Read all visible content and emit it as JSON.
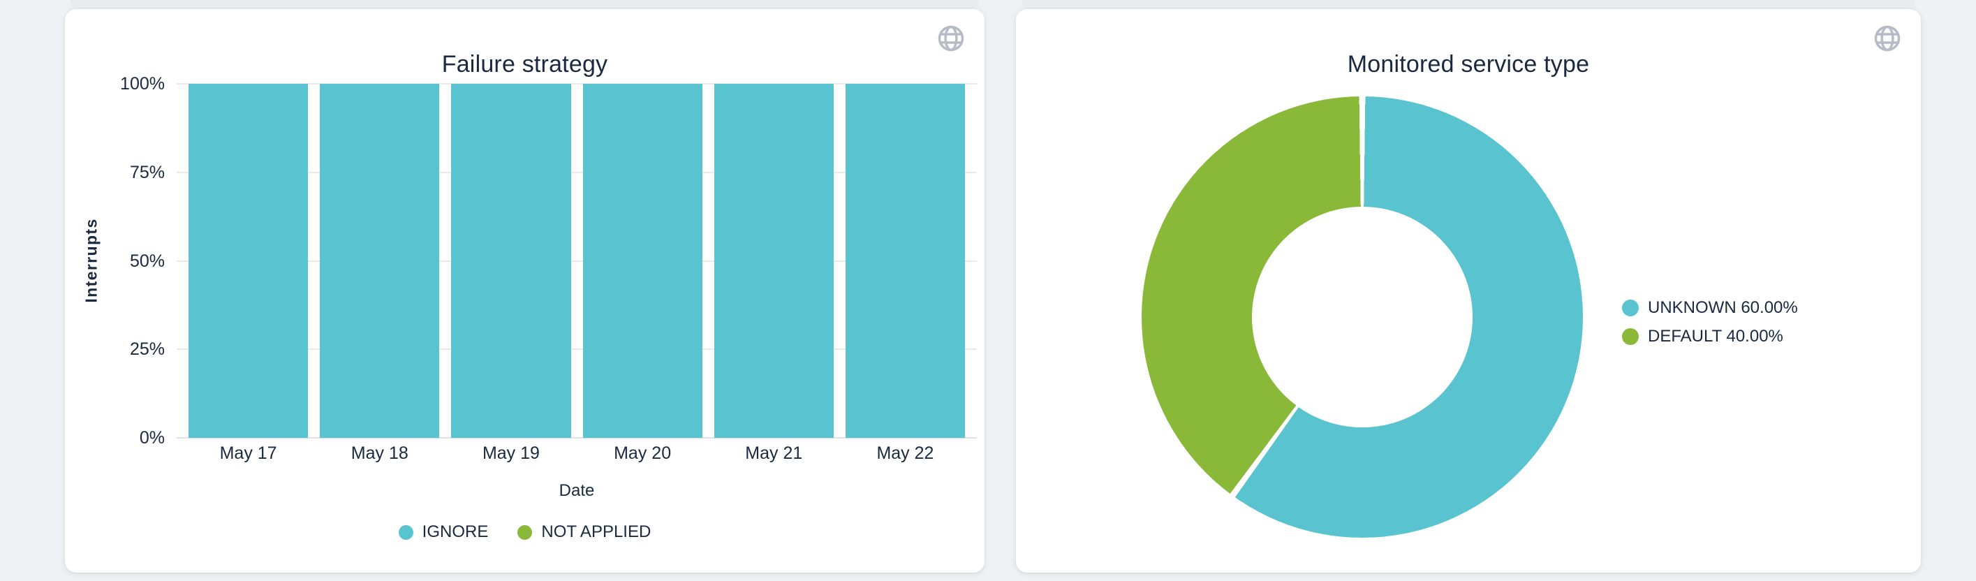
{
  "page": {
    "background_color": "#EFF1F4",
    "card_color": "#FFFFFF",
    "text_color": "#1B2940",
    "grid_color": "#E8EAED",
    "icon_color": "#B6BCC6"
  },
  "widgets": {
    "failure_strategy": {
      "corner_icon": "globe"
    },
    "monitored_service_type": {
      "corner_icon": "globe"
    }
  },
  "chart_data": [
    {
      "type": "bar",
      "title": "Failure strategy",
      "xlabel": "Date",
      "ylabel": "Interrupts",
      "categories": [
        "May 17",
        "May 18",
        "May 19",
        "May 20",
        "May 21",
        "May 22"
      ],
      "series": [
        {
          "name": "IGNORE",
          "color": "#59C4CF",
          "values": [
            100,
            100,
            100,
            100,
            100,
            100
          ]
        },
        {
          "name": "NOT APPLIED",
          "color": "#8AB838",
          "values": [
            0,
            0,
            0,
            0,
            0,
            0
          ]
        }
      ],
      "stacked": true,
      "value_unit": "%",
      "ylim": [
        0,
        100
      ],
      "yticks": [
        "0%",
        "25%",
        "50%",
        "75%",
        "100%"
      ],
      "grid": true,
      "legend_position": "bottom"
    },
    {
      "type": "pie",
      "title": "Monitored service type",
      "donut": true,
      "start_angle_deg": 0,
      "direction": "clockwise",
      "slices": [
        {
          "label": "UNKNOWN",
          "value": 60.0,
          "display": "UNKNOWN 60.00%",
          "color": "#59C4CF"
        },
        {
          "label": "DEFAULT",
          "value": 40.0,
          "display": "DEFAULT 40.00%",
          "color": "#8AB838"
        }
      ],
      "legend_position": "right"
    }
  ]
}
